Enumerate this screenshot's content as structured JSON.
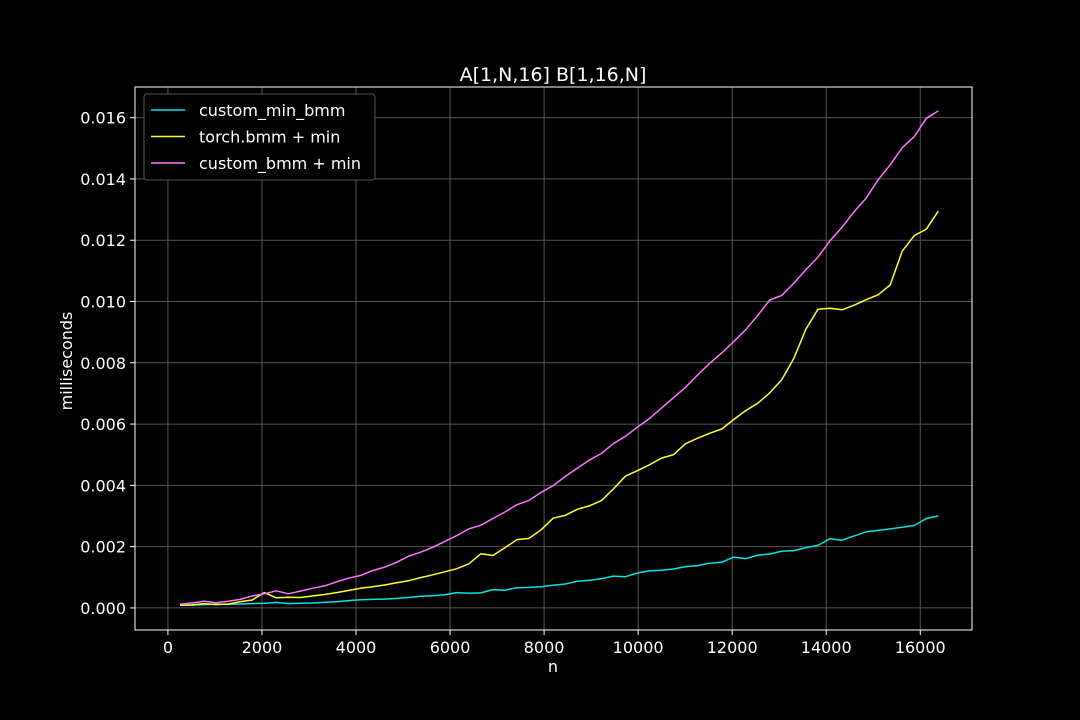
{
  "chart_data": {
    "type": "line",
    "title": "A[1,N,16] B[1,16,N]",
    "xlabel": "n",
    "ylabel": "milliseconds",
    "xlim": [
      -700,
      17100
    ],
    "ylim": [
      -0.00072,
      0.017
    ],
    "xticks": [
      0,
      2000,
      4000,
      6000,
      8000,
      10000,
      12000,
      14000,
      16000
    ],
    "xtick_labels": [
      "0",
      "2000",
      "4000",
      "6000",
      "8000",
      "10000",
      "12000",
      "14000",
      "16000"
    ],
    "yticks": [
      0.0,
      0.002,
      0.004,
      0.006,
      0.008,
      0.01,
      0.012,
      0.014,
      0.016
    ],
    "ytick_labels": [
      "0.000",
      "0.002",
      "0.004",
      "0.006",
      "0.008",
      "0.010",
      "0.012",
      "0.014",
      "0.016"
    ],
    "grid": true,
    "legend_position": "top-left",
    "x": [
      256,
      512,
      768,
      1024,
      1280,
      1536,
      1792,
      2048,
      2304,
      2560,
      2816,
      3072,
      3328,
      3584,
      3840,
      4096,
      4352,
      4608,
      4864,
      5120,
      5376,
      5632,
      5888,
      6144,
      6400,
      6656,
      6912,
      7168,
      7424,
      7680,
      7936,
      8192,
      8448,
      8704,
      8960,
      9216,
      9472,
      9728,
      9984,
      10240,
      10496,
      10752,
      11008,
      11264,
      11520,
      11776,
      12032,
      12288,
      12544,
      12800,
      13056,
      13312,
      13568,
      13824,
      14080,
      14336,
      14592,
      14848,
      15104,
      15360,
      15616,
      15872,
      16128,
      16384
    ],
    "series": [
      {
        "name": "custom_min_bmm",
        "color": "#00e5e5",
        "values": [
          9e-05,
          9e-05,
          0.00011,
          0.00012,
          0.00012,
          0.00013,
          0.00014,
          0.00015,
          0.00018,
          0.00014,
          0.00015,
          0.00016,
          0.00018,
          0.0002,
          0.00024,
          0.00027,
          0.00028,
          0.00029,
          0.00031,
          0.00034,
          0.00038,
          0.0004,
          0.00043,
          0.0005,
          0.00048,
          0.00049,
          0.0006,
          0.00058,
          0.00066,
          0.00067,
          0.00069,
          0.00074,
          0.00078,
          0.00087,
          0.0009,
          0.00095,
          0.00104,
          0.00102,
          0.00114,
          0.00121,
          0.00123,
          0.00127,
          0.00135,
          0.00138,
          0.00146,
          0.00149,
          0.00166,
          0.00161,
          0.00172,
          0.00176,
          0.00185,
          0.00187,
          0.00197,
          0.00204,
          0.00226,
          0.00221,
          0.00235,
          0.00248,
          0.00253,
          0.00258,
          0.00263,
          0.00269,
          0.00292,
          0.003
        ]
      },
      {
        "name": "torch.bmm + min",
        "color": "#ffff33",
        "values": [
          9e-05,
          0.0001,
          0.00014,
          0.00011,
          0.00013,
          0.0002,
          0.00026,
          0.0005,
          0.00033,
          0.00035,
          0.00034,
          0.00039,
          0.00044,
          0.0005,
          0.00057,
          0.00064,
          0.00069,
          0.00075,
          0.00082,
          0.00089,
          0.00099,
          0.00108,
          0.00118,
          0.00128,
          0.00144,
          0.00177,
          0.00171,
          0.00197,
          0.00223,
          0.00227,
          0.00255,
          0.00293,
          0.00302,
          0.00322,
          0.00333,
          0.0035,
          0.00388,
          0.0043,
          0.00448,
          0.00467,
          0.00489,
          0.005,
          0.00536,
          0.00554,
          0.0057,
          0.00584,
          0.00615,
          0.00644,
          0.00668,
          0.00702,
          0.00745,
          0.00815,
          0.0091,
          0.00975,
          0.00978,
          0.00973,
          0.00988,
          0.01006,
          0.01022,
          0.01054,
          0.01164,
          0.01215,
          0.01236,
          0.01295
        ]
      },
      {
        "name": "custom_bmm + min",
        "color": "#ff77ff",
        "values": [
          0.00012,
          0.00016,
          0.00022,
          0.00017,
          0.00022,
          0.00028,
          0.00039,
          0.00046,
          0.00056,
          0.00046,
          0.00055,
          0.00064,
          0.00072,
          0.00085,
          0.00097,
          0.00106,
          0.00122,
          0.00133,
          0.00149,
          0.00169,
          0.00182,
          0.00198,
          0.00217,
          0.00236,
          0.00258,
          0.0027,
          0.00292,
          0.00313,
          0.00337,
          0.00351,
          0.00377,
          0.00399,
          0.00429,
          0.00456,
          0.00482,
          0.00504,
          0.00536,
          0.0056,
          0.0059,
          0.00618,
          0.00652,
          0.00686,
          0.0072,
          0.0076,
          0.00798,
          0.00832,
          0.00869,
          0.00908,
          0.00955,
          0.01005,
          0.0102,
          0.0106,
          0.01104,
          0.01145,
          0.01198,
          0.01242,
          0.01293,
          0.01337,
          0.01397,
          0.01446,
          0.01502,
          0.01538,
          0.01598,
          0.01622
        ]
      }
    ]
  }
}
